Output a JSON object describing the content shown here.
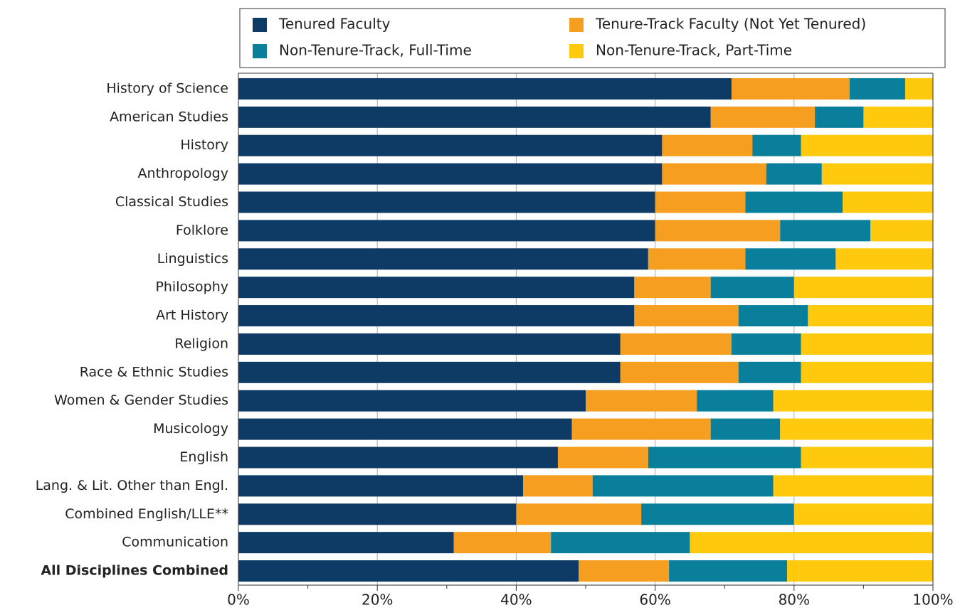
{
  "chart_data": {
    "type": "stacked-barh",
    "categories": [
      "History of Science",
      "American Studies",
      "History",
      "Anthropology",
      "Classical Studies",
      "Folklore",
      "Linguistics",
      "Philosophy",
      "Art History",
      "Religion",
      "Race & Ethnic Studies",
      "Women & Gender Studies",
      "Musicology",
      "English",
      "Lang. & Lit. Other than Engl.",
      "Combined English/LLE**",
      "Communication",
      "All Disciplines Combined"
    ],
    "series": [
      {
        "name": "Tenured Faculty",
        "color": "#0d3b66",
        "values": [
          71,
          68,
          61,
          61,
          60,
          60,
          59,
          57,
          57,
          55,
          55,
          50,
          48,
          46,
          41,
          40,
          31,
          49
        ]
      },
      {
        "name": "Tenure-Track Faculty (Not Yet Tenured)",
        "color": "#f59e1f",
        "values": [
          17,
          15,
          13,
          15,
          13,
          18,
          14,
          11,
          15,
          16,
          17,
          16,
          20,
          13,
          10,
          18,
          14,
          13
        ]
      },
      {
        "name": "Non-Tenure-Track, Full-Time",
        "color": "#0a7f9b",
        "values": [
          8,
          7,
          7,
          8,
          14,
          13,
          13,
          12,
          10,
          10,
          9,
          11,
          10,
          22,
          26,
          22,
          20,
          17
        ]
      },
      {
        "name": "Non-Tenure-Track, Part-Time",
        "color": "#ffc90e",
        "values": [
          4,
          10,
          19,
          16,
          13,
          9,
          14,
          20,
          18,
          19,
          19,
          23,
          22,
          19,
          23,
          20,
          35,
          21
        ]
      }
    ],
    "xlim": [
      0,
      100
    ],
    "xticks": [
      {
        "value": 0,
        "label": "0%"
      },
      {
        "value": 20,
        "label": "20%"
      },
      {
        "value": 40,
        "label": "40%"
      },
      {
        "value": 60,
        "label": "60%"
      },
      {
        "value": 80,
        "label": "80%"
      },
      {
        "value": 100,
        "label": "100%"
      }
    ],
    "xminorticks": [
      10,
      30,
      50,
      70,
      90
    ],
    "grid": true,
    "legend": "top"
  }
}
